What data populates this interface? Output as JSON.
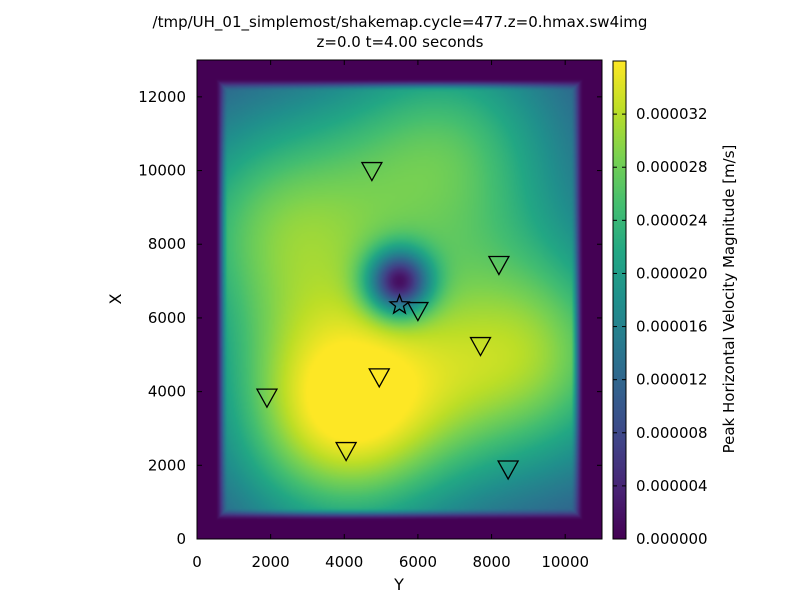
{
  "chart_data": {
    "type": "heatmap",
    "title_line1": "/tmp/UH_01_simplemost/shakemap.cycle=477.z=0.hmax.sw4img",
    "title_line2": "z=0.0  t=4.00 seconds",
    "xlabel": "Y",
    "ylabel": "X",
    "xlim": [
      0,
      11000
    ],
    "ylim": [
      0,
      13000
    ],
    "x_ticks": [
      0,
      2000,
      4000,
      6000,
      8000,
      10000
    ],
    "x_tick_labels": [
      "0",
      "2000",
      "4000",
      "6000",
      "8000",
      "10000"
    ],
    "y_ticks": [
      0,
      2000,
      4000,
      6000,
      8000,
      10000,
      12000
    ],
    "y_tick_labels": [
      "0",
      "2000",
      "4000",
      "6000",
      "8000",
      "10000",
      "12000"
    ],
    "colormap": "viridis",
    "colorbar": {
      "label": "Peak Horizontal Velocity Magnitude [m/s]",
      "range": [
        0,
        3.6e-05
      ],
      "ticks": [
        0,
        4e-06,
        8e-06,
        1.2e-05,
        1.6e-05,
        2e-05,
        2.4e-05,
        2.8e-05,
        3.2e-05
      ],
      "tick_labels": [
        "0.000000",
        "0.000004",
        "0.000008",
        "0.000012",
        "0.000016",
        "0.000020",
        "0.000024",
        "0.000028",
        "0.000032"
      ]
    },
    "field_extent": {
      "x": [
        500,
        10500
      ],
      "y": [
        500,
        12500
      ]
    },
    "lobes": [
      {
        "x": 4000,
        "y": 3500,
        "peak": 3.6e-05
      },
      {
        "x": 9000,
        "y": 5000,
        "peak": 2.9e-05
      },
      {
        "x": 2200,
        "y": 8500,
        "peak": 2.6e-05
      },
      {
        "x": 6800,
        "y": 10500,
        "peak": 2.5e-05
      }
    ],
    "epicenter": {
      "x": 5500,
      "y": 6350,
      "marker": "star"
    },
    "stations": [
      {
        "x": 4750,
        "y": 10000
      },
      {
        "x": 8200,
        "y": 7450
      },
      {
        "x": 6000,
        "y": 6200
      },
      {
        "x": 7700,
        "y": 5250
      },
      {
        "x": 4950,
        "y": 4400
      },
      {
        "x": 1900,
        "y": 3850
      },
      {
        "x": 4050,
        "y": 2400
      },
      {
        "x": 8450,
        "y": 1900
      }
    ],
    "station_marker": "triangle-down"
  }
}
